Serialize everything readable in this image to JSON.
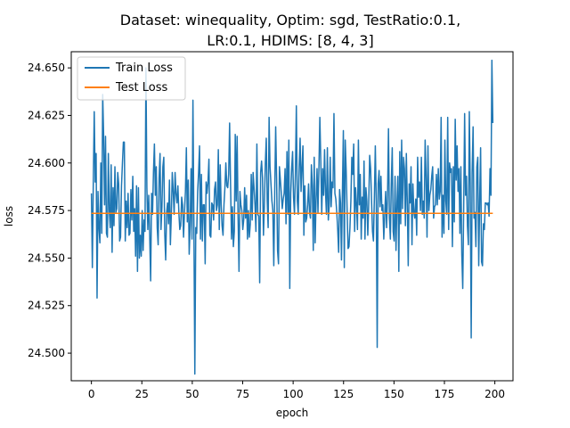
{
  "chart_data": {
    "type": "line",
    "title_line1": "Dataset: winequality, Optim: sgd, TestRatio:0.1,",
    "title_line2": "LR:0.1, HDIMS: [8, 4, 3]",
    "xlabel": "epoch",
    "ylabel": "loss",
    "xlim": [
      -10,
      209
    ],
    "ylim": [
      24.4855,
      24.6585
    ],
    "xticks": [
      0,
      25,
      50,
      75,
      100,
      125,
      150,
      175,
      200
    ],
    "yticks": [
      24.5,
      24.525,
      24.55,
      24.575,
      24.6,
      24.625,
      24.65
    ],
    "ytick_labels": [
      "24.500",
      "24.525",
      "24.550",
      "24.575",
      "24.600",
      "24.625",
      "24.650"
    ],
    "legend_position": "upper-left",
    "series": [
      {
        "name": "Train Loss",
        "color": "#1f77b4",
        "x_start": 0,
        "values": [
          24.584,
          24.545,
          24.59,
          24.627,
          24.59,
          24.605,
          24.529,
          24.585,
          24.566,
          24.558,
          24.6,
          24.563,
          24.636,
          24.614,
          24.578,
          24.614,
          24.563,
          24.561,
          24.605,
          24.575,
          24.566,
          24.599,
          24.553,
          24.587,
          24.567,
          24.598,
          24.574,
          24.576,
          24.595,
          24.589,
          24.559,
          24.561,
          24.588,
          24.6,
          24.611,
          24.611,
          24.559,
          24.58,
          24.566,
          24.584,
          24.562,
          24.563,
          24.586,
          24.57,
          24.593,
          24.564,
          24.576,
          24.551,
          24.588,
          24.543,
          24.587,
          24.55,
          24.562,
          24.551,
          24.575,
          24.554,
          24.57,
          24.564,
          24.65,
          24.587,
          24.565,
          24.583,
          24.562,
          24.538,
          24.584,
          24.573,
          24.595,
          24.61,
          24.583,
          24.598,
          24.566,
          24.557,
          24.592,
          24.605,
          24.565,
          24.577,
          24.598,
          24.603,
          24.563,
          24.549,
          24.574,
          24.579,
          24.568,
          24.591,
          24.557,
          24.573,
          24.595,
          24.585,
          24.573,
          24.595,
          24.584,
          24.579,
          24.588,
          24.574,
          24.565,
          24.567,
          24.582,
          24.578,
          24.561,
          24.574,
          24.585,
          24.608,
          24.569,
          24.591,
          24.552,
          24.567,
          24.597,
          24.56,
          24.633,
          24.568,
          24.489,
          24.566,
          24.563,
          24.585,
          24.595,
          24.609,
          24.56,
          24.594,
          24.559,
          24.578,
          24.578,
          24.547,
          24.59,
          24.584,
          24.59,
          24.602,
          24.562,
          24.561,
          24.579,
          24.578,
          24.57,
          24.586,
          24.59,
          24.575,
          24.578,
          24.607,
          24.565,
          24.599,
          24.578,
          24.567,
          24.562,
          24.578,
          24.587,
          24.6,
          24.588,
          24.587,
          24.594,
          24.621,
          24.589,
          24.56,
          24.577,
          24.556,
          24.564,
          24.615,
          24.58,
          24.614,
          24.572,
          24.543,
          24.585,
          24.578,
          24.575,
          24.565,
          24.57,
          24.587,
          24.571,
          24.583,
          24.56,
          24.575,
          24.561,
          24.568,
          24.594,
          24.57,
          24.595,
          24.587,
          24.578,
          24.564,
          24.61,
          24.573,
          24.572,
          24.537,
          24.595,
          24.601,
          24.592,
          24.562,
          24.578,
          24.6,
          24.613,
          24.58,
          24.566,
          24.624,
          24.598,
          24.589,
          24.58,
          24.575,
          24.546,
          24.585,
          24.619,
          24.592,
          24.554,
          24.547,
          24.598,
          24.591,
          24.584,
          24.576,
          24.581,
          24.584,
          24.597,
          24.568,
          24.606,
          24.573,
          24.612,
          24.534,
          24.584,
          24.597,
          24.606,
          24.582,
          24.573,
          24.595,
          24.63,
          24.58,
          24.573,
          24.598,
          24.613,
          24.585,
          24.598,
          24.609,
          24.562,
          24.588,
          24.569,
          24.571,
          24.578,
          24.589,
          24.574,
          24.571,
          24.599,
          24.588,
          24.554,
          24.603,
          24.558,
          24.581,
          24.597,
          24.574,
          24.597,
          24.624,
          24.601,
          24.573,
          24.597,
          24.583,
          24.607,
          24.585,
          24.573,
          24.608,
          24.57,
          24.578,
          24.603,
          24.577,
          24.59,
          24.587,
          24.626,
          24.584,
          24.581,
          24.574,
          24.565,
          24.553,
          24.586,
          24.579,
          24.549,
          24.585,
          24.617,
          24.545,
          24.612,
          24.596,
          24.575,
          24.555,
          24.556,
          24.566,
          24.58,
          24.603,
          24.594,
          24.61,
          24.564,
          24.587,
          24.578,
          24.565,
          24.612,
          24.578,
          24.594,
          24.56,
          24.582,
          24.571,
          24.601,
          24.56,
          24.587,
          24.58,
          24.562,
          24.579,
          24.604,
          24.597,
          24.58,
          24.564,
          24.559,
          24.582,
          24.609,
          24.58,
          24.503,
          24.589,
          24.596,
          24.577,
          24.593,
          24.575,
          24.578,
          24.56,
          24.573,
          24.585,
          24.566,
          24.583,
          24.618,
          24.571,
          24.56,
          24.589,
          24.608,
          24.564,
          24.559,
          24.593,
          24.554,
          24.579,
          24.593,
          24.543,
          24.606,
          24.568,
          24.612,
          24.576,
          24.603,
          24.597,
          24.567,
          24.605,
          24.58,
          24.546,
          24.589,
          24.579,
          24.598,
          24.557,
          24.589,
          24.574,
          24.571,
          24.581,
          24.562,
          24.603,
          24.582,
          24.59,
          24.575,
          24.603,
          24.573,
          24.58,
          24.571,
          24.612,
          24.593,
          24.561,
          24.609,
          24.575,
          24.583,
          24.586,
          24.593,
          24.598,
          24.571,
          24.577,
          24.578,
          24.594,
          24.578,
          24.597,
          24.581,
          24.585,
          24.624,
          24.561,
          24.583,
          24.563,
          24.612,
          24.58,
          24.573,
          24.624,
          24.565,
          24.6,
          24.595,
          24.597,
          24.556,
          24.598,
          24.569,
          24.623,
          24.591,
          24.609,
          24.585,
          24.597,
          24.563,
          24.598,
          24.552,
          24.534,
          24.576,
          24.626,
          24.583,
          24.593,
          24.567,
          24.557,
          24.627,
          24.588,
          24.508,
          24.595,
          24.619,
          24.571,
          24.574,
          24.556,
          24.598,
          24.603,
          24.546,
          24.58,
          24.608,
          24.548,
          24.546,
          24.568,
          24.565,
          24.579,
          24.579,
          24.578,
          24.579,
          24.572,
          24.597,
          24.583,
          24.654,
          24.621
        ]
      },
      {
        "name": "Test Loss",
        "color": "#ff7f0e",
        "x": [
          0,
          199
        ],
        "values": [
          24.5735,
          24.5735
        ]
      }
    ]
  }
}
